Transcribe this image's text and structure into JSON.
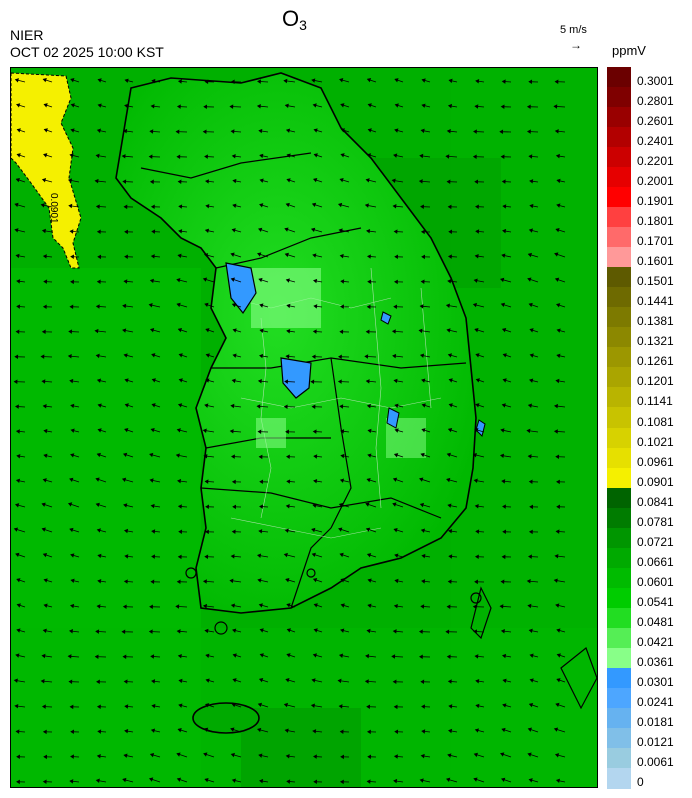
{
  "header": {
    "title_main": "O",
    "title_sub": "3",
    "agency": "NIER",
    "timestamp": "OCT 02 2025 10:00 KST",
    "wind_reference": "5 m/s",
    "wind_reference_arrow": "→",
    "unit": "ppmV"
  },
  "map": {
    "contour_label": "0.0901",
    "wind_flow": "from east-northeast, light"
  },
  "legend": {
    "labels": [
      "0.3001",
      "0.2801",
      "0.2601",
      "0.2401",
      "0.2201",
      "0.2001",
      "0.1901",
      "0.1801",
      "0.1701",
      "0.1601",
      "0.1501",
      "0.1441",
      "0.1381",
      "0.1321",
      "0.1261",
      "0.1201",
      "0.1141",
      "0.1081",
      "0.1021",
      "0.0961",
      "0.0901",
      "0.0841",
      "0.0781",
      "0.0721",
      "0.0661",
      "0.0601",
      "0.0541",
      "0.0481",
      "0.0421",
      "0.0361",
      "0.0301",
      "0.0241",
      "0.0181",
      "0.0121",
      "0.0061",
      "0"
    ],
    "colors": [
      "#6b0000",
      "#7f0000",
      "#990000",
      "#b20000",
      "#cc0000",
      "#e60000",
      "#ff0000",
      "#ff4040",
      "#ff6a6a",
      "#ff9999",
      "#5e5a00",
      "#6e6a00",
      "#7d7a00",
      "#8c8800",
      "#9c9700",
      "#aaa500",
      "#b9b400",
      "#c8c300",
      "#d7d200",
      "#e6e000",
      "#f5f000",
      "#006400",
      "#007c00",
      "#009600",
      "#00aa00",
      "#00bb00",
      "#00cc00",
      "#22dd22",
      "#55ee55",
      "#88ff88",
      "#3399ff",
      "#4da6ff",
      "#66b2f0",
      "#80bfe8",
      "#99cce0",
      "#b3d6ef"
    ]
  }
}
